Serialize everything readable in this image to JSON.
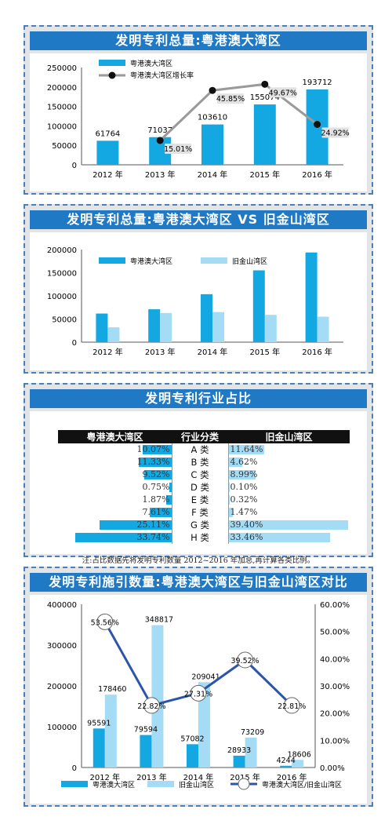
{
  "chart_data": [
    {
      "type": "bar",
      "title": "发明专利总量:粤港澳大湾区",
      "categories": [
        "2012 年",
        "2013 年",
        "2014 年",
        "2015 年",
        "2016 年"
      ],
      "series": [
        {
          "name": "粤港澳大湾区",
          "values": [
            61764,
            71037,
            103610,
            155074,
            193712
          ],
          "labels": [
            "61764",
            "71037",
            "103610",
            "155074",
            "193712"
          ],
          "color": "#13a8e1"
        },
        {
          "name": "粤港澳大湾区增长率",
          "type": "line",
          "values": [
            null,
            15.01,
            45.85,
            49.67,
            24.92
          ],
          "labels": [
            "",
            "15.01%",
            "45.85%",
            "49.67%",
            "24.92%"
          ],
          "color": "#9a9a9a"
        }
      ],
      "ylim": [
        0,
        250000
      ],
      "yticks": [
        "0",
        "50000",
        "100000",
        "150000",
        "200000",
        "250000"
      ],
      "legend": "top-left"
    },
    {
      "type": "bar",
      "title": "发明专利总量:粤港澳大湾区 VS 旧金山湾区",
      "categories": [
        "2012 年",
        "2013 年",
        "2014 年",
        "2015 年",
        "2016 年"
      ],
      "series": [
        {
          "name": "粤港澳大湾区",
          "values": [
            61764,
            71037,
            103610,
            155074,
            193712
          ],
          "color": "#13a8e1"
        },
        {
          "name": "旧金山湾区",
          "values": [
            32000,
            63000,
            65000,
            59000,
            55000
          ],
          "color": "#a4dbf5"
        }
      ],
      "ylim": [
        0,
        200000
      ],
      "yticks": [
        "0",
        "50000",
        "100000",
        "150000",
        "200000"
      ],
      "legend": "top"
    },
    {
      "type": "table",
      "title": "发明专利行业占比",
      "headers": [
        "粤港澳大湾区",
        "行业分类",
        "旧金山湾区"
      ],
      "rows": [
        {
          "category": "A 类",
          "left": 10.07,
          "left_label": "10.07%",
          "right": 11.64,
          "right_label": "11.64%"
        },
        {
          "category": "B 类",
          "left": 11.33,
          "left_label": "11.33%",
          "right": 4.62,
          "right_label": "4.62%"
        },
        {
          "category": "C 类",
          "left": 9.52,
          "left_label": "9.52%",
          "right": 8.99,
          "right_label": "8.99%"
        },
        {
          "category": "D 类",
          "left": 0.75,
          "left_label": "0.75%",
          "right": 0.1,
          "right_label": "0.10%"
        },
        {
          "category": "E 类",
          "left": 1.87,
          "left_label": "1.87%",
          "right": 0.32,
          "right_label": "0.32%"
        },
        {
          "category": "F 类",
          "left": 7.61,
          "left_label": "7.61%",
          "right": 1.47,
          "right_label": "1.47%"
        },
        {
          "category": "G 类",
          "left": 25.11,
          "left_label": "25.11%",
          "right": 39.4,
          "right_label": "39.40%"
        },
        {
          "category": "H 类",
          "left": 33.74,
          "left_label": "33.74%",
          "right": 33.46,
          "right_label": "33.46%"
        }
      ],
      "note": "注:占比数据先将发明专利数量 2012~2016 年加总,再计算各类比例。",
      "colors": {
        "left": "#13a8e1",
        "right": "#a4dbf5"
      }
    },
    {
      "type": "bar",
      "title": "发明专利施引数量:粤港澳大湾区与旧金山湾区对比",
      "categories": [
        "2012 年",
        "2013 年",
        "2014 年",
        "2015 年",
        "2016 年"
      ],
      "series": [
        {
          "name": "粤港澳大湾区",
          "values": [
            95591,
            79594,
            57082,
            28933,
            4244
          ],
          "labels": [
            "95591",
            "79594",
            "57082",
            "28933",
            "4244"
          ],
          "color": "#13a8e1"
        },
        {
          "name": "旧金山湾区",
          "values": [
            178460,
            348817,
            209041,
            73209,
            18606
          ],
          "labels": [
            "178460",
            "348817",
            "209041",
            "73209",
            "18606"
          ],
          "color": "#a4dbf5"
        },
        {
          "name": "粤港澳大湾区/旧金山湾区",
          "type": "line",
          "axis": "right",
          "values": [
            53.56,
            22.82,
            27.31,
            39.52,
            22.81
          ],
          "labels": [
            "53.56%",
            "22.82%",
            "27.31%",
            "39.52%",
            "22.81%"
          ],
          "color": "#2b55a8"
        }
      ],
      "ylim": [
        0,
        400000
      ],
      "yticks": [
        "0",
        "100000",
        "200000",
        "300000",
        "400000"
      ],
      "y2lim": [
        0,
        60
      ],
      "y2ticks": [
        "0.00%",
        "10.00%",
        "20.00%",
        "30.00%",
        "40.00%",
        "50.00%",
        "60.00%"
      ],
      "legend": "bottom"
    }
  ]
}
